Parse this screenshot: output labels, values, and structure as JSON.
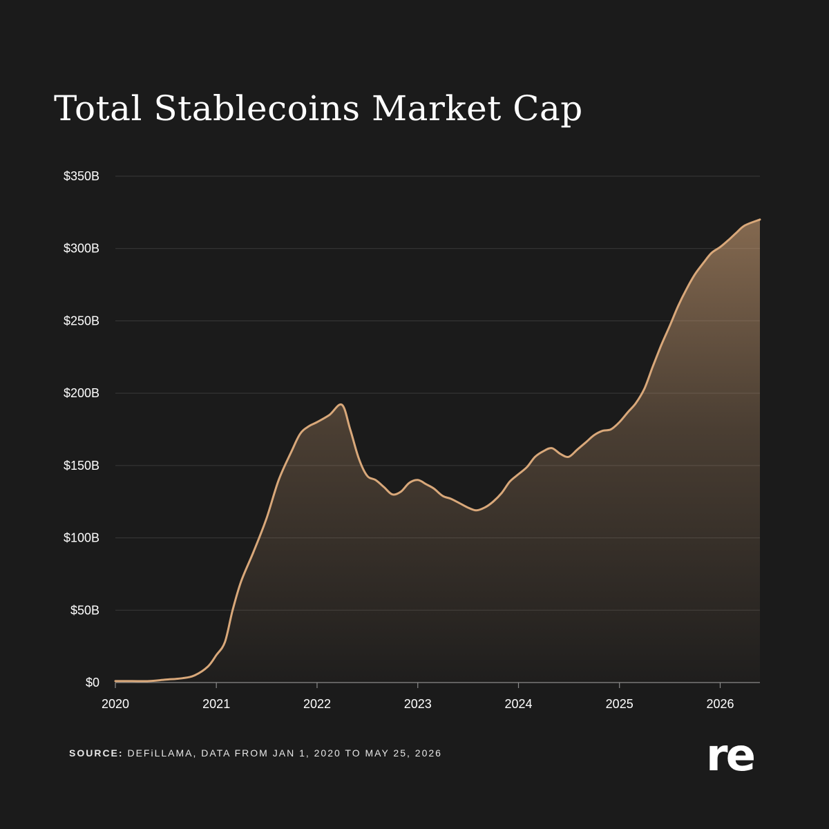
{
  "chart_data": {
    "type": "area",
    "title": "Total Stablecoins Market Cap",
    "x_ticks": [
      "2020",
      "2021",
      "2022",
      "2023",
      "2024",
      "2025",
      "2026"
    ],
    "y_ticks": [
      "$0",
      "$50B",
      "$100B",
      "$150B",
      "$200B",
      "$250B",
      "$300B",
      "$350B"
    ],
    "ylim": [
      0,
      350
    ],
    "xlim": [
      "2020-01-01",
      "2026-05-25"
    ],
    "grid": true,
    "line_color": "#d9a87a",
    "x": [
      "2020-01-01",
      "2020-03-01",
      "2020-05-01",
      "2020-07-01",
      "2020-09-01",
      "2020-10-15",
      "2020-12-01",
      "2021-01-01",
      "2021-02-01",
      "2021-03-01",
      "2021-04-01",
      "2021-05-15",
      "2021-07-01",
      "2021-08-15",
      "2021-10-01",
      "2021-11-01",
      "2021-12-01",
      "2022-01-01",
      "2022-02-15",
      "2022-04-01",
      "2022-05-01",
      "2022-06-01",
      "2022-07-01",
      "2022-08-01",
      "2022-09-01",
      "2022-10-01",
      "2022-11-01",
      "2022-12-01",
      "2023-01-01",
      "2023-02-01",
      "2023-03-01",
      "2023-04-01",
      "2023-05-01",
      "2023-06-01",
      "2023-07-01",
      "2023-08-01",
      "2023-09-01",
      "2023-10-01",
      "2023-11-01",
      "2023-12-01",
      "2024-01-01",
      "2024-02-01",
      "2024-03-01",
      "2024-04-01",
      "2024-05-01",
      "2024-06-01",
      "2024-07-01",
      "2024-08-01",
      "2024-09-01",
      "2024-10-01",
      "2024-11-01",
      "2024-12-01",
      "2025-01-01",
      "2025-02-01",
      "2025-03-01",
      "2025-04-01",
      "2025-05-01",
      "2025-06-01",
      "2025-07-01",
      "2025-08-01",
      "2025-09-01",
      "2025-10-01",
      "2025-11-01",
      "2025-12-01",
      "2026-01-01",
      "2026-02-01",
      "2026-03-01",
      "2026-04-01",
      "2026-05-25"
    ],
    "series": [
      {
        "values": [
          1,
          1,
          1,
          2,
          3,
          5,
          11,
          19,
          28,
          50,
          70,
          90,
          113,
          140,
          160,
          172,
          177,
          180,
          185,
          192,
          175,
          155,
          143,
          140,
          135,
          130,
          132,
          138,
          140,
          137,
          134,
          129,
          127,
          124,
          121,
          119,
          121,
          125,
          131,
          139,
          144,
          149,
          156,
          160,
          162,
          158,
          156,
          161,
          166,
          171,
          174,
          175,
          180,
          187,
          193,
          203,
          218,
          233,
          246,
          260,
          272,
          282,
          290,
          297,
          301,
          306,
          311,
          316,
          320
        ]
      }
    ]
  },
  "source": {
    "label": "SOURCE:",
    "text": "DEFiLLAMA, DATA FROM JAN 1, 2020 TO MAY 25, 2026"
  },
  "logo": {
    "text": "re"
  },
  "colors": {
    "background": "#1b1b1b",
    "line": "#d9a87a",
    "grid": "#3a3a3a"
  }
}
